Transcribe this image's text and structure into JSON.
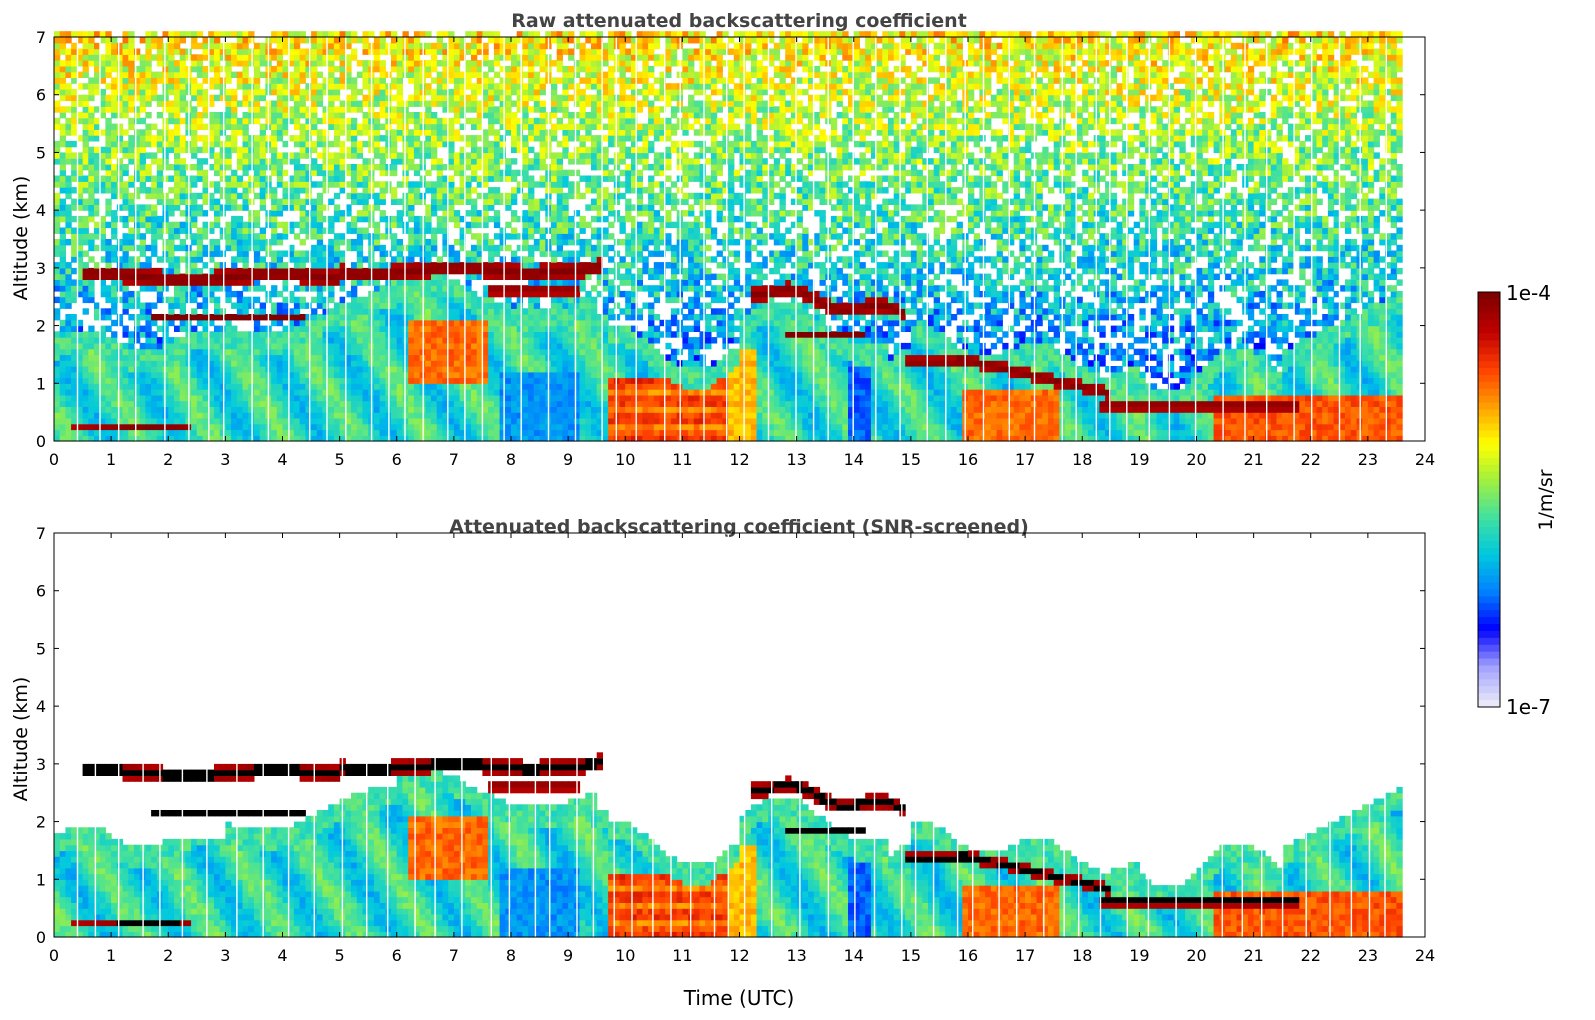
{
  "chart_data": [
    {
      "type": "heatmap",
      "title": "Raw attenuated backscattering coefficient",
      "xlabel": "",
      "ylabel": "Altitude (km)",
      "xlim": [
        0,
        24
      ],
      "ylim": [
        0,
        7
      ],
      "xticks": [
        "0",
        "1",
        "2",
        "3",
        "4",
        "5",
        "6",
        "7",
        "8",
        "9",
        "10",
        "11",
        "12",
        "13",
        "14",
        "15",
        "16",
        "17",
        "18",
        "19",
        "20",
        "21",
        "22",
        "23",
        "24"
      ],
      "yticks": [
        "0",
        "1",
        "2",
        "3",
        "4",
        "5",
        "6",
        "7"
      ],
      "data_end_hour": 23.6,
      "layers": [
        {
          "name": "elevated aerosol layer",
          "x": [
            0.55,
            9.6
          ],
          "y": [
            2.6,
            3.1
          ]
        },
        {
          "name": "cloud band",
          "x": [
            12.1,
            14.9
          ],
          "y": [
            2.1,
            2.7
          ]
        },
        {
          "name": "low cloud",
          "x": [
            15.0,
            18.5
          ],
          "y": [
            0.9,
            1.6
          ]
        },
        {
          "name": "low cloud",
          "x": [
            18.3,
            21.8
          ],
          "y": [
            0.5,
            0.8
          ]
        }
      ]
    },
    {
      "type": "heatmap",
      "title": "Attenuated backscattering coefficient (SNR-screened)",
      "xlabel": "Time (UTC)",
      "ylabel": "Altitude (km)",
      "xlim": [
        0,
        24
      ],
      "ylim": [
        0,
        7
      ],
      "xticks": [
        "0",
        "1",
        "2",
        "3",
        "4",
        "5",
        "6",
        "7",
        "8",
        "9",
        "10",
        "11",
        "12",
        "13",
        "14",
        "15",
        "16",
        "17",
        "18",
        "19",
        "20",
        "21",
        "22",
        "23",
        "24"
      ],
      "yticks": [
        "0",
        "1",
        "2",
        "3",
        "4",
        "5",
        "6",
        "7"
      ],
      "data_end_hour": 23.6
    }
  ],
  "colorbar": {
    "label": "1/m/sr",
    "max_label": "1e-4",
    "min_label": "1e-7",
    "colors": [
      "#e8e8f8",
      "#a0a0ff",
      "#0000ff",
      "#0080ff",
      "#00c8e0",
      "#40e0a0",
      "#a0f040",
      "#ffff00",
      "#ffa000",
      "#ff4000",
      "#c00000",
      "#800000"
    ]
  }
}
